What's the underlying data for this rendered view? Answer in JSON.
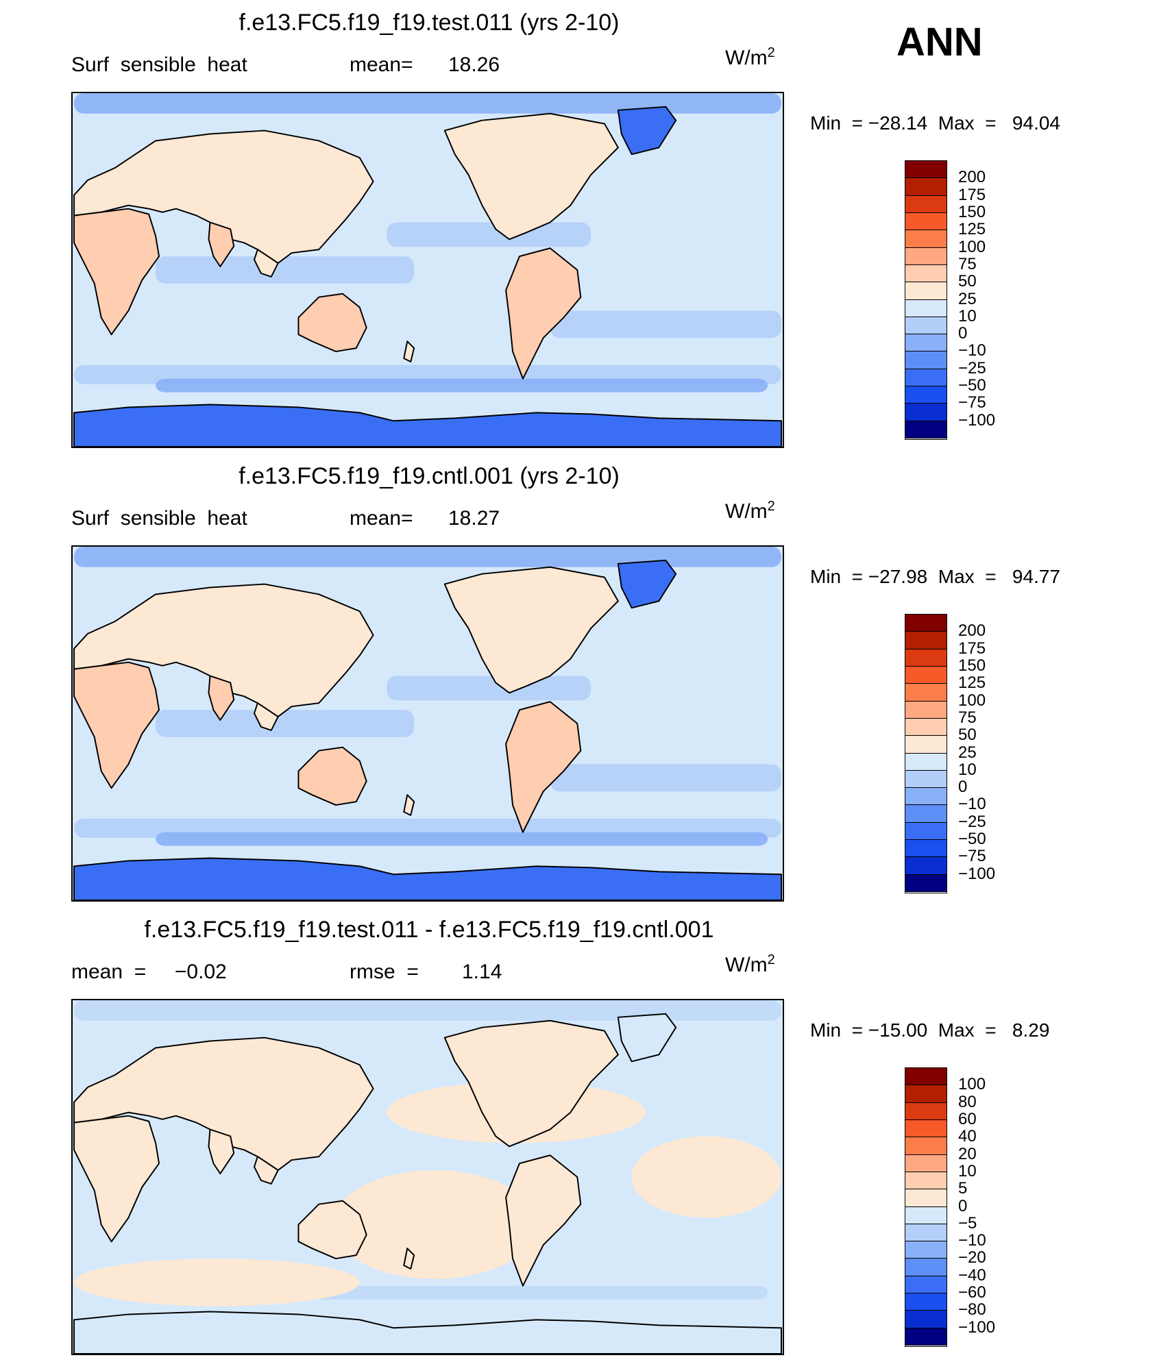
{
  "season": "ANN",
  "panels": [
    {
      "title": "f.e13.FC5.f19_f19.test.011 (yrs 2-10)",
      "left_text": "Surf  sensible  heat",
      "mean_label": "mean=",
      "mean_value": "18.26",
      "units_base": "W/m",
      "units_sup": "2",
      "min_label": "Min  =",
      "min_value": "−28.14",
      "max_label": "Max  =",
      "max_value": "94.04",
      "colorbar": {
        "labels": [
          "200",
          "175",
          "150",
          "125",
          "100",
          "75",
          "50",
          "25",
          "10",
          "0",
          "−10",
          "−25",
          "−50",
          "−75",
          "−100"
        ],
        "colors": [
          "#800000",
          "#b32000",
          "#dc3a10",
          "#f55a28",
          "#fc7d4a",
          "#ffa882",
          "#ffcdb0",
          "#fde8d4",
          "#d6e9fb",
          "#b3cff8",
          "#8ab0f7",
          "#5e8ff6",
          "#3a6ff5",
          "#1a4ff0",
          "#0a2fd0",
          "#000080"
        ]
      },
      "map": {
        "ocean": "#d6e9fb",
        "land_warm": "#ffcdb0",
        "land_mild": "#fde8d4",
        "polar": "#3a6ff5",
        "cool": "#b3cff8",
        "mid_cool": "#8ab0f7"
      }
    },
    {
      "title": "f.e13.FC5.f19_f19.cntl.001 (yrs 2-10)",
      "left_text": "Surf  sensible  heat",
      "mean_label": "mean=",
      "mean_value": "18.27",
      "units_base": "W/m",
      "units_sup": "2",
      "min_label": "Min  =",
      "min_value": "−27.98",
      "max_label": "Max  =",
      "max_value": "94.77",
      "colorbar": {
        "labels": [
          "200",
          "175",
          "150",
          "125",
          "100",
          "75",
          "50",
          "25",
          "10",
          "0",
          "−10",
          "−25",
          "−50",
          "−75",
          "−100"
        ],
        "colors": [
          "#800000",
          "#b32000",
          "#dc3a10",
          "#f55a28",
          "#fc7d4a",
          "#ffa882",
          "#ffcdb0",
          "#fde8d4",
          "#d6e9fb",
          "#b3cff8",
          "#8ab0f7",
          "#5e8ff6",
          "#3a6ff5",
          "#1a4ff0",
          "#0a2fd0",
          "#000080"
        ]
      },
      "map": {
        "ocean": "#d6e9fb",
        "land_warm": "#ffcdb0",
        "land_mild": "#fde8d4",
        "polar": "#3a6ff5",
        "cool": "#b3cff8",
        "mid_cool": "#8ab0f7"
      }
    },
    {
      "title": "f.e13.FC5.f19_f19.test.011 - f.e13.FC5.f19_f19.cntl.001",
      "left_text": "mean  =     −0.02",
      "mean_label": "rmse  =",
      "mean_value": "1.14",
      "units_base": "W/m",
      "units_sup": "2",
      "min_label": "Min  =",
      "min_value": "−15.00",
      "max_label": "Max  =",
      "max_value": "8.29",
      "colorbar": {
        "labels": [
          "100",
          "80",
          "60",
          "40",
          "20",
          "10",
          "5",
          "0",
          "−5",
          "−10",
          "−20",
          "−40",
          "−60",
          "−80",
          "−100"
        ],
        "colors": [
          "#800000",
          "#b32000",
          "#dc3a10",
          "#f55a28",
          "#fc7d4a",
          "#ffa882",
          "#ffcdb0",
          "#fde8d4",
          "#d6e9fb",
          "#b3cff8",
          "#8ab0f7",
          "#5e8ff6",
          "#3a6ff5",
          "#1a4ff0",
          "#0a2fd0",
          "#000080"
        ]
      },
      "map": {
        "ocean": "#d6e9fb",
        "land_warm": "#fde8d4",
        "land_mild": "#fde8d4",
        "polar": "#d6e9fb",
        "cool": "#d6e9fb",
        "mid_cool": "#b3cff8"
      }
    }
  ]
}
